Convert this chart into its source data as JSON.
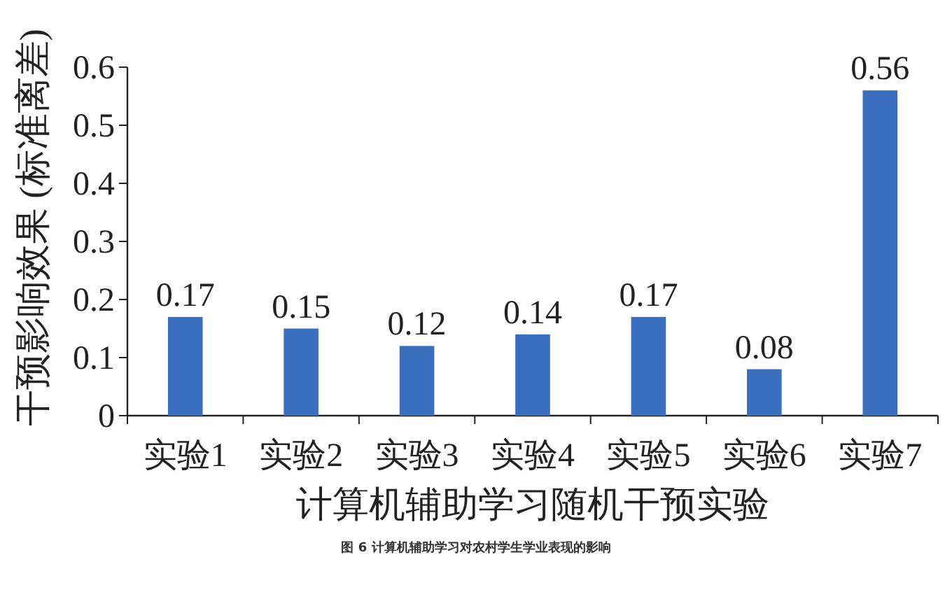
{
  "chart_data": {
    "type": "bar",
    "xlabel": "计算机辅助学习随机干预实验",
    "ylabel": "干预影响效果 (标准离差)",
    "categories": [
      "实验1",
      "实验2",
      "实验3",
      "实验4",
      "实验5",
      "实验6",
      "实验7"
    ],
    "values": [
      0.17,
      0.15,
      0.12,
      0.14,
      0.17,
      0.08,
      0.56
    ],
    "color": "#3a6fc0",
    "ylim": [
      0,
      0.6
    ],
    "yticks": [
      0,
      0.1,
      0.2,
      0.3,
      0.4,
      0.5,
      0.6
    ],
    "grid": false,
    "data_labels": true,
    "annotations": [
      "图 6 计算机辅助学习对农村学生学业表现的影响"
    ]
  }
}
